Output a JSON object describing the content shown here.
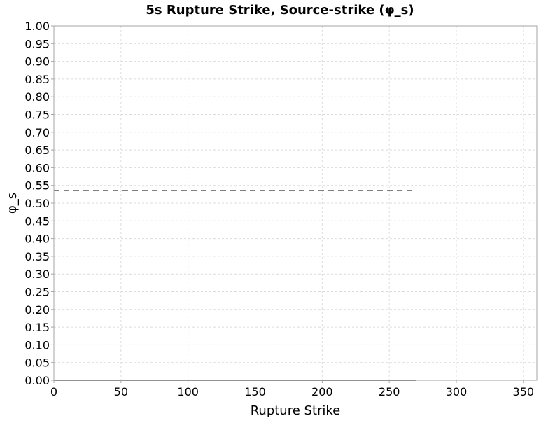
{
  "chart_data": {
    "type": "line",
    "title": "5s Rupture Strike, Source-strike (φ_s)",
    "xlabel": "Rupture Strike",
    "ylabel": "φ_s",
    "xlim": [
      0,
      360
    ],
    "ylim": [
      0,
      1.0
    ],
    "x_ticks": [
      0,
      50,
      100,
      150,
      200,
      250,
      300,
      350
    ],
    "y_ticks": [
      0.0,
      0.05,
      0.1,
      0.15,
      0.2,
      0.25,
      0.3,
      0.35,
      0.4,
      0.45,
      0.5,
      0.55,
      0.6,
      0.65,
      0.7,
      0.75,
      0.8,
      0.85,
      0.9,
      0.95,
      1.0
    ],
    "grid": true,
    "legend": "none",
    "series": [
      {
        "style": "dashed",
        "color": "#808080",
        "x": [
          0,
          270
        ],
        "y": [
          0.535,
          0.535
        ]
      },
      {
        "style": "solid",
        "color": "#808080",
        "x": [
          0,
          270
        ],
        "y": [
          0.0,
          0.0
        ]
      }
    ]
  }
}
